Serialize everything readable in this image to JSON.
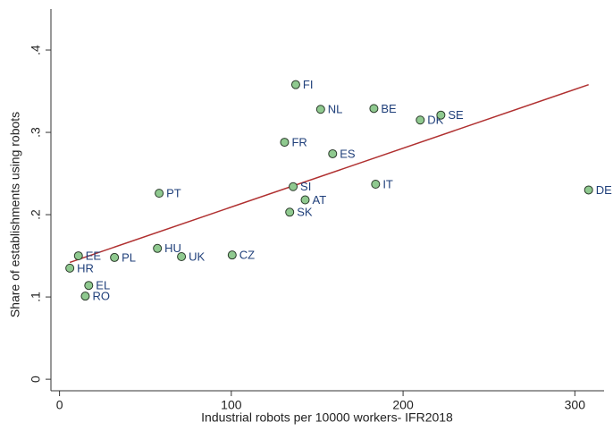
{
  "chart_data": {
    "type": "scatter",
    "x_label": "Industrial robots per 10000 workers- IFR2018",
    "y_label": "Share of establishments using robots",
    "xlim": [
      -5,
      317
    ],
    "ylim": [
      -0.014,
      0.45
    ],
    "xticks": [
      0,
      100,
      200,
      300
    ],
    "yticks": [
      0,
      {
        "value": 0.1,
        "label": ".1"
      },
      {
        "value": 0.2,
        "label": ".2"
      },
      {
        "value": 0.3,
        "label": ".3"
      },
      {
        "value": 0.4,
        "label": ".4"
      }
    ],
    "series": [
      {
        "color": "#8fc98f",
        "labels": [
          "FI",
          "NL",
          "BE",
          "DK",
          "SE",
          "FR",
          "ES",
          "DE",
          "IT",
          "PT",
          "SI",
          "AT",
          "SK",
          "HU",
          "CZ",
          "UK",
          "PL",
          "EE",
          "HR",
          "EL",
          "RO"
        ],
        "x": [
          137.5,
          152,
          183,
          210,
          222,
          131,
          159,
          308,
          184,
          58,
          136,
          143,
          134,
          57,
          100.5,
          71,
          32,
          11,
          6,
          17,
          15
        ],
        "values": [
          0.358,
          0.328,
          0.329,
          0.315,
          0.321,
          0.288,
          0.274,
          0.23,
          0.237,
          0.226,
          0.234,
          0.218,
          0.203,
          0.159,
          0.151,
          0.149,
          0.148,
          0.15,
          0.135,
          0.114,
          0.101
        ]
      }
    ],
    "fit_line": {
      "color": "#b03030",
      "x": [
        6,
        308
      ],
      "values": [
        0.142,
        0.358
      ]
    }
  }
}
